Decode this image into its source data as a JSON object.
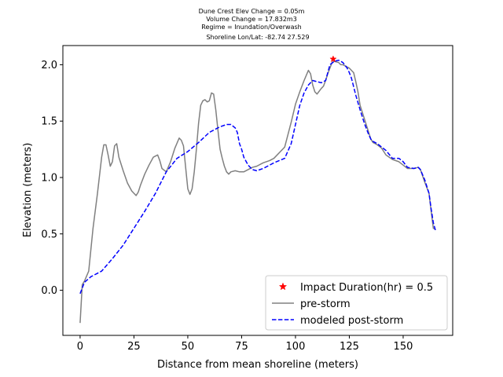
{
  "chart_data": {
    "type": "line",
    "title_lines": [
      "Dune Crest Elev Change = 0.05m",
      "Volume Change = 17.832m3",
      "Regime = Inundation/Overwash",
      "Shoreline Lon/Lat: -82.74 27.529"
    ],
    "xlabel": "Distance from mean shoreline (meters)",
    "ylabel": "Elevation (meters)",
    "xlim": [
      -8,
      173
    ],
    "ylim": [
      -0.4,
      2.17
    ],
    "xticks": [
      0,
      25,
      50,
      75,
      100,
      125,
      150
    ],
    "yticks": [
      0.0,
      0.5,
      1.0,
      1.5,
      2.0
    ],
    "xtick_labels": [
      "0",
      "25",
      "50",
      "75",
      "100",
      "125",
      "150"
    ],
    "ytick_labels": [
      "0.0",
      "0.5",
      "1.0",
      "1.5",
      "2.0"
    ],
    "grid": false,
    "legend_position": "lower-right",
    "colors": {
      "pre": "#808080",
      "post": "#0000ff",
      "marker": "#ff0000"
    },
    "marker": {
      "label": "Impact Duration(hr) = 0.5",
      "x": 117.5,
      "y": 2.05
    },
    "series": [
      {
        "name": "pre-storm",
        "style": "solid",
        "x": [
          0,
          1,
          2,
          4,
          6,
          8,
          10,
          11,
          12,
          13,
          14,
          15,
          16,
          17,
          18,
          19,
          20,
          22,
          24,
          26,
          27,
          28,
          30,
          32,
          34,
          35,
          36,
          37,
          38,
          40,
          42,
          44,
          46,
          47,
          48,
          50,
          51,
          52,
          53,
          54,
          55,
          56,
          57,
          58,
          59,
          60,
          61,
          62,
          63,
          64,
          65,
          66,
          67,
          68,
          69,
          70,
          72,
          74,
          76,
          78,
          80,
          82,
          85,
          88,
          90,
          95,
          98,
          100,
          102,
          104,
          106,
          107,
          108,
          109,
          110,
          112,
          113,
          114,
          115,
          116,
          117,
          118,
          120,
          121,
          122,
          123,
          124,
          125,
          127,
          128,
          129,
          130,
          132,
          134,
          135,
          136,
          138,
          140,
          142,
          145,
          148,
          150,
          152,
          155,
          157,
          158,
          160,
          162,
          163,
          164,
          165
        ],
        "values": [
          -0.29,
          0.05,
          0.08,
          0.17,
          0.55,
          0.85,
          1.18,
          1.29,
          1.29,
          1.2,
          1.1,
          1.14,
          1.28,
          1.3,
          1.18,
          1.12,
          1.06,
          0.95,
          0.88,
          0.84,
          0.87,
          0.93,
          1.03,
          1.11,
          1.18,
          1.19,
          1.2,
          1.15,
          1.08,
          1.05,
          1.14,
          1.26,
          1.35,
          1.33,
          1.28,
          0.9,
          0.85,
          0.9,
          1.05,
          1.25,
          1.48,
          1.64,
          1.68,
          1.69,
          1.67,
          1.68,
          1.75,
          1.74,
          1.6,
          1.42,
          1.25,
          1.17,
          1.1,
          1.05,
          1.03,
          1.05,
          1.06,
          1.05,
          1.05,
          1.07,
          1.09,
          1.1,
          1.13,
          1.15,
          1.17,
          1.27,
          1.49,
          1.65,
          1.76,
          1.86,
          1.95,
          1.92,
          1.82,
          1.76,
          1.74,
          1.79,
          1.81,
          1.86,
          1.92,
          1.97,
          2.02,
          2.03,
          2.02,
          2.0,
          2.0,
          1.99,
          1.98,
          1.97,
          1.93,
          1.85,
          1.76,
          1.64,
          1.52,
          1.4,
          1.34,
          1.31,
          1.29,
          1.26,
          1.2,
          1.16,
          1.14,
          1.11,
          1.08,
          1.08,
          1.09,
          1.07,
          0.96,
          0.86,
          0.7,
          0.55,
          0.54
        ]
      },
      {
        "name": "modeled post-storm",
        "style": "dashed",
        "x": [
          0,
          2,
          5,
          8,
          10,
          15,
          20,
          25,
          30,
          35,
          40,
          45,
          50,
          55,
          60,
          65,
          68,
          70,
          72,
          73,
          74,
          75,
          76,
          78,
          80,
          82,
          85,
          88,
          90,
          95,
          98,
          100,
          102,
          104,
          106,
          108,
          110,
          112,
          113,
          114,
          115,
          116,
          118,
          120,
          122,
          124,
          125,
          126,
          128,
          130,
          132,
          134,
          135,
          136,
          138,
          140,
          142,
          145,
          148,
          150,
          152,
          155,
          157,
          158,
          160,
          162,
          163,
          164,
          165
        ],
        "values": [
          -0.03,
          0.07,
          0.12,
          0.15,
          0.17,
          0.28,
          0.4,
          0.55,
          0.7,
          0.86,
          1.05,
          1.17,
          1.23,
          1.31,
          1.4,
          1.45,
          1.47,
          1.47,
          1.44,
          1.4,
          1.3,
          1.25,
          1.18,
          1.11,
          1.07,
          1.06,
          1.08,
          1.11,
          1.13,
          1.17,
          1.3,
          1.47,
          1.64,
          1.75,
          1.82,
          1.86,
          1.85,
          1.84,
          1.85,
          1.86,
          1.93,
          2.0,
          2.03,
          2.04,
          2.02,
          1.97,
          1.93,
          1.88,
          1.73,
          1.6,
          1.48,
          1.38,
          1.34,
          1.32,
          1.3,
          1.27,
          1.24,
          1.17,
          1.17,
          1.14,
          1.09,
          1.08,
          1.09,
          1.07,
          0.98,
          0.86,
          0.72,
          0.6,
          0.53
        ]
      }
    ]
  }
}
